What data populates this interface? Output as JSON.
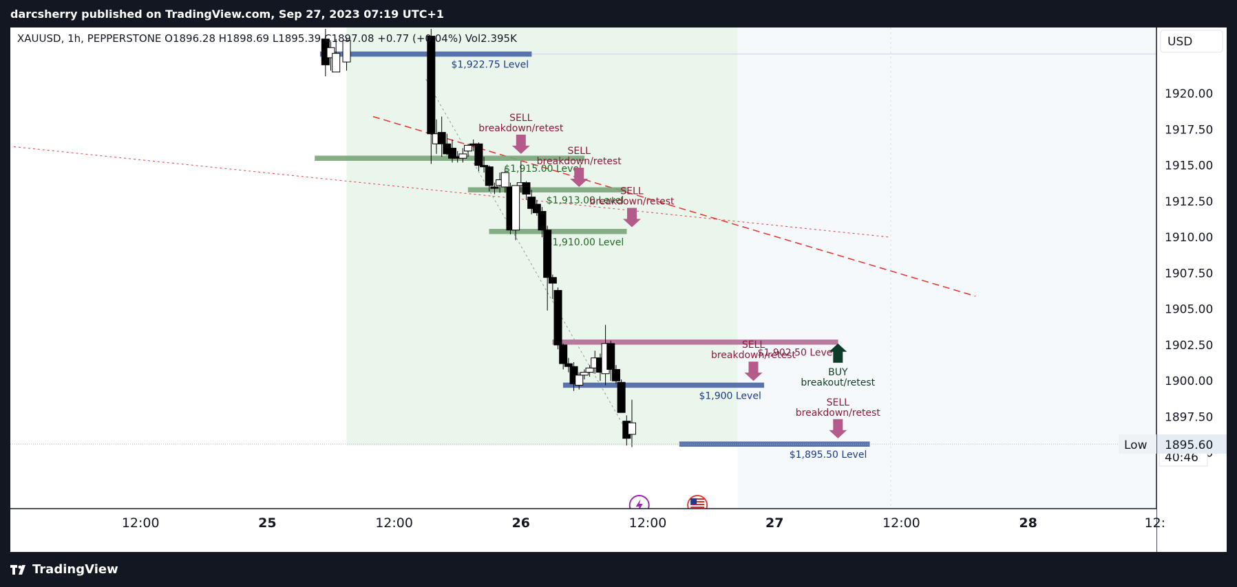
{
  "header": {
    "publisher": "darcsherry published on TradingView.com, Sep 27, 2023 07:19 UTC+1"
  },
  "footer": {
    "brand": "TradingView"
  },
  "legend": {
    "text": "XAUUSD, 1h, PEPPERSTONE  O1896.28  H1898.69  L1895.39  C1897.08  +0.77 (+0.04%)  Vol2.395K"
  },
  "price_axis": {
    "currency": "USD",
    "ticks": [
      "1920.00",
      "1917.50",
      "1915.00",
      "1912.50",
      "1910.00",
      "1907.50",
      "1905.00",
      "1902.50",
      "1900.00",
      "1897.50",
      "1895.00"
    ],
    "countdown": "40:46",
    "low_label": "Low",
    "low_value": "1895.60"
  },
  "chart_data": {
    "type": "candlestick",
    "symbol": "XAUUSD",
    "timeframe": "1h",
    "exchange": "PEPPERSTONE",
    "x_axis_labels": [
      {
        "label": "12:00",
        "t": 12
      },
      {
        "label": "25",
        "t": 24
      },
      {
        "label": "12:00",
        "t": 36
      },
      {
        "label": "26",
        "t": 48
      },
      {
        "label": "12:00",
        "t": 60
      },
      {
        "label": "27",
        "t": 72
      },
      {
        "label": "12:00",
        "t": 84
      },
      {
        "label": "28",
        "t": 96
      },
      {
        "label": "12:",
        "t": 108
      }
    ],
    "y_range": [
      1893.6,
      1923.5
    ],
    "current_price": 1895.6,
    "candles": [
      {
        "t": 29.5,
        "o": 1923.8,
        "h": 1924.5,
        "l": 1921.2,
        "c": 1922.0
      },
      {
        "t": 30.0,
        "o": 1922.5,
        "h": 1923.6,
        "l": 1921.6,
        "c": 1923.2
      },
      {
        "t": 30.5,
        "o": 1921.5,
        "h": 1923.8,
        "l": 1921.5,
        "c": 1922.8
      },
      {
        "t": 31.5,
        "o": 1922.2,
        "h": 1923.9,
        "l": 1921.6,
        "c": 1923.7
      },
      {
        "t": 39.5,
        "o": 1924.0,
        "h": 1924.5,
        "l": 1915.1,
        "c": 1917.2
      },
      {
        "t": 40.0,
        "o": 1916.5,
        "h": 1918.2,
        "l": 1915.8,
        "c": 1917.2
      },
      {
        "t": 40.5,
        "o": 1917.3,
        "h": 1918.4,
        "l": 1915.6,
        "c": 1916.5
      },
      {
        "t": 41.0,
        "o": 1916.5,
        "h": 1917.2,
        "l": 1915.7,
        "c": 1915.8
      },
      {
        "t": 41.5,
        "o": 1916.2,
        "h": 1916.8,
        "l": 1915.2,
        "c": 1915.5
      },
      {
        "t": 42.0,
        "o": 1915.6,
        "h": 1916.0,
        "l": 1915.2,
        "c": 1915.5
      },
      {
        "t": 42.5,
        "o": 1915.5,
        "h": 1916.2,
        "l": 1915.2,
        "c": 1915.8
      },
      {
        "t": 43.0,
        "o": 1916.0,
        "h": 1916.5,
        "l": 1915.6,
        "c": 1916.4
      },
      {
        "t": 43.5,
        "o": 1916.5,
        "h": 1916.8,
        "l": 1916.0,
        "c": 1916.4
      },
      {
        "t": 44.0,
        "o": 1916.5,
        "h": 1916.6,
        "l": 1914.6,
        "c": 1915.0
      },
      {
        "t": 44.5,
        "o": 1915.0,
        "h": 1915.6,
        "l": 1914.5,
        "c": 1914.9
      },
      {
        "t": 45.0,
        "o": 1914.9,
        "h": 1915.0,
        "l": 1913.2,
        "c": 1913.6
      },
      {
        "t": 45.5,
        "o": 1913.5,
        "h": 1913.8,
        "l": 1913.0,
        "c": 1913.4
      },
      {
        "t": 46.0,
        "o": 1913.6,
        "h": 1914.5,
        "l": 1913.1,
        "c": 1914.0
      },
      {
        "t": 46.5,
        "o": 1913.5,
        "h": 1914.8,
        "l": 1913.1,
        "c": 1914.5
      },
      {
        "t": 47.0,
        "o": 1913.5,
        "h": 1913.8,
        "l": 1910.2,
        "c": 1910.5
      },
      {
        "t": 47.5,
        "o": 1910.5,
        "h": 1913.6,
        "l": 1909.8,
        "c": 1913.6
      },
      {
        "t": 48.0,
        "o": 1913.6,
        "h": 1915.3,
        "l": 1913.1,
        "c": 1913.8
      },
      {
        "t": 48.5,
        "o": 1913.8,
        "h": 1913.9,
        "l": 1912.6,
        "c": 1913.0
      },
      {
        "t": 49.0,
        "o": 1912.8,
        "h": 1913.3,
        "l": 1911.6,
        "c": 1912.0
      },
      {
        "t": 49.5,
        "o": 1912.3,
        "h": 1912.6,
        "l": 1911.5,
        "c": 1911.7
      },
      {
        "t": 50.0,
        "o": 1911.8,
        "h": 1912.1,
        "l": 1910.0,
        "c": 1910.5
      },
      {
        "t": 50.5,
        "o": 1910.5,
        "h": 1910.8,
        "l": 1904.9,
        "c": 1907.2
      },
      {
        "t": 51.0,
        "o": 1907.2,
        "h": 1907.4,
        "l": 1905.7,
        "c": 1906.8
      },
      {
        "t": 51.5,
        "o": 1906.3,
        "h": 1906.5,
        "l": 1902.2,
        "c": 1902.5
      },
      {
        "t": 52.0,
        "o": 1902.5,
        "h": 1902.6,
        "l": 1900.8,
        "c": 1901.2
      },
      {
        "t": 52.5,
        "o": 1901.2,
        "h": 1901.6,
        "l": 1900.6,
        "c": 1901.0
      },
      {
        "t": 53.0,
        "o": 1901.0,
        "h": 1901.3,
        "l": 1899.3,
        "c": 1899.8
      },
      {
        "t": 53.5,
        "o": 1899.7,
        "h": 1900.6,
        "l": 1899.4,
        "c": 1900.4
      },
      {
        "t": 54.0,
        "o": 1900.4,
        "h": 1900.8,
        "l": 1900.1,
        "c": 1900.6
      },
      {
        "t": 54.5,
        "o": 1900.6,
        "h": 1901.1,
        "l": 1900.3,
        "c": 1900.9
      },
      {
        "t": 55.0,
        "o": 1900.9,
        "h": 1902.1,
        "l": 1900.5,
        "c": 1901.6
      },
      {
        "t": 55.5,
        "o": 1901.6,
        "h": 1901.9,
        "l": 1900.0,
        "c": 1900.6
      },
      {
        "t": 56.0,
        "o": 1900.5,
        "h": 1903.9,
        "l": 1899.7,
        "c": 1902.6
      },
      {
        "t": 56.5,
        "o": 1902.6,
        "h": 1902.8,
        "l": 1900.0,
        "c": 1900.8
      },
      {
        "t": 57.0,
        "o": 1900.8,
        "h": 1901.1,
        "l": 1899.8,
        "c": 1900.0
      },
      {
        "t": 57.5,
        "o": 1899.9,
        "h": 1900.1,
        "l": 1897.8,
        "c": 1897.8
      },
      {
        "t": 58.0,
        "o": 1897.2,
        "h": 1897.6,
        "l": 1895.5,
        "c": 1896.0
      },
      {
        "t": 58.5,
        "o": 1896.28,
        "h": 1898.69,
        "l": 1895.39,
        "c": 1897.08
      }
    ],
    "levels": [
      {
        "label": "$1,922.75 Level",
        "price": 1922.75,
        "t_start": 29.0,
        "t_end": 49.0,
        "color": "#4a64a6",
        "text_color": "#1a3a8c"
      },
      {
        "label": "$1,915.00 Level",
        "price": 1915.5,
        "t_start": 28.5,
        "t_end": 54.0,
        "color": "#7aa57a",
        "text_color": "#1f6b24"
      },
      {
        "label": "$1,913.00 Level",
        "price": 1913.3,
        "t_start": 43.0,
        "t_end": 58.0,
        "color": "#7aa57a",
        "text_color": "#1f6b24"
      },
      {
        "label": "$1,910.00 Level",
        "price": 1910.4,
        "t_start": 45.0,
        "t_end": 58.0,
        "color": "#7aa57a",
        "text_color": "#1f6b24"
      },
      {
        "label": "$1,902.50 Level",
        "price": 1902.7,
        "t_start": 51.0,
        "t_end": 78.0,
        "color": "#b46b95",
        "text_color": "#8b1a3a"
      },
      {
        "label": "$1,900 Level",
        "price": 1899.7,
        "t_start": 52.0,
        "t_end": 71.0,
        "color": "#4a64a6",
        "text_color": "#1a3a8c"
      },
      {
        "label": "$1,895.50 Level",
        "price": 1895.6,
        "t_start": 63.0,
        "t_end": 81.0,
        "color": "#4a64a6",
        "text_color": "#1a3a8c"
      }
    ],
    "annotations": [
      {
        "line1": "SELL",
        "line2": "breakdown/retest",
        "t": 48.0,
        "price": 1915.8,
        "direction": "down",
        "color": "#8b1a3a",
        "arrow_color": "#b55b8c"
      },
      {
        "line1": "SELL",
        "line2": "breakdown/retest",
        "t": 53.5,
        "price": 1913.5,
        "direction": "down",
        "color": "#8b1a3a",
        "arrow_color": "#b55b8c"
      },
      {
        "line1": "SELL",
        "line2": "breakdown/retest",
        "t": 58.5,
        "price": 1910.7,
        "direction": "down",
        "color": "#8b1a3a",
        "arrow_color": "#b55b8c"
      },
      {
        "line1": "SELL",
        "line2": "breakdown/retest",
        "t": 70.0,
        "price": 1900.0,
        "direction": "down",
        "color": "#8b1a3a",
        "arrow_color": "#b55b8c"
      },
      {
        "line1": "SELL",
        "line2": "breakdown/retest",
        "t": 78.0,
        "price": 1896.0,
        "direction": "up_label_down",
        "color": "#8b1a3a",
        "arrow_color": "#b55b8c"
      },
      {
        "line1": "BUY",
        "line2": "breakout/retest",
        "t": 78.0,
        "price": 1902.6,
        "direction": "up",
        "color": "#123d24",
        "arrow_color": "#0e3b2a"
      }
    ],
    "trend_lines": [
      {
        "t1": 0,
        "p1": 1916.3,
        "t2": 83,
        "p2": 1910.0,
        "style": "dotted",
        "color": "#e05252"
      },
      {
        "t1": 34,
        "p1": 1918.4,
        "t2": 91,
        "p2": 1905.9,
        "style": "dashed",
        "color": "#e53935"
      },
      {
        "t1": 39.0,
        "p1": 1921.0,
        "t2": 58.0,
        "p2": 1896.5,
        "style": "dotted",
        "color": "#9aa0a6"
      }
    ],
    "shaded_region": {
      "t_start": 31.5,
      "t_end": 68.5,
      "color": "#e3f2e4"
    },
    "grid": false
  }
}
